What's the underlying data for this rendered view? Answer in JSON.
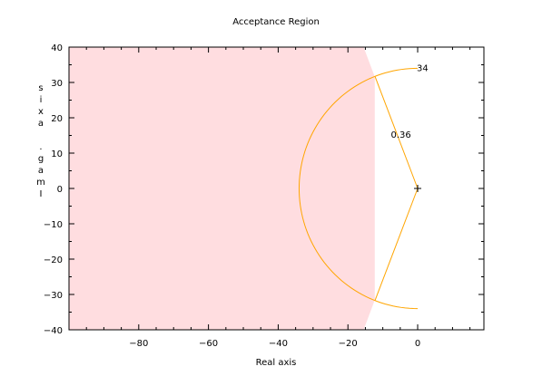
{
  "chart_data": {
    "type": "line",
    "title": "Acceptance Region",
    "xlabel": "Real axis",
    "ylabel": "Imag. axis",
    "xlim": [
      -100,
      19
    ],
    "ylim": [
      -40,
      40
    ],
    "x_ticks": [
      -80,
      -60,
      -40,
      -20,
      0
    ],
    "x_tick_labels": [
      "−80",
      "−60",
      "−40",
      "−20",
      "0"
    ],
    "y_ticks": [
      -40,
      -30,
      -20,
      -10,
      0,
      10,
      20,
      30,
      40
    ],
    "y_tick_labels": [
      "−40",
      "−30",
      "−20",
      "−10",
      "0",
      "10",
      "20",
      "30",
      "40"
    ],
    "grid": false,
    "colors": {
      "region_fill": "#ffdde0",
      "boundary": "#ffa500",
      "axes": "#000000"
    },
    "acceptance_region": {
      "boundary_points": [
        [
          -100,
          40
        ],
        [
          -15.5,
          40
        ],
        [
          -12.3,
          31.6
        ],
        [
          -12.3,
          -31.6
        ],
        [
          -15.5,
          -40
        ],
        [
          -100,
          -40
        ]
      ]
    },
    "constraint_curves": {
      "natural_frequency": 34,
      "natural_frequency_label": "34",
      "damping_ratio": 0.36,
      "damping_ratio_label": "0.36"
    },
    "marker": {
      "x": 0,
      "y": 0,
      "symbol": "+"
    }
  }
}
